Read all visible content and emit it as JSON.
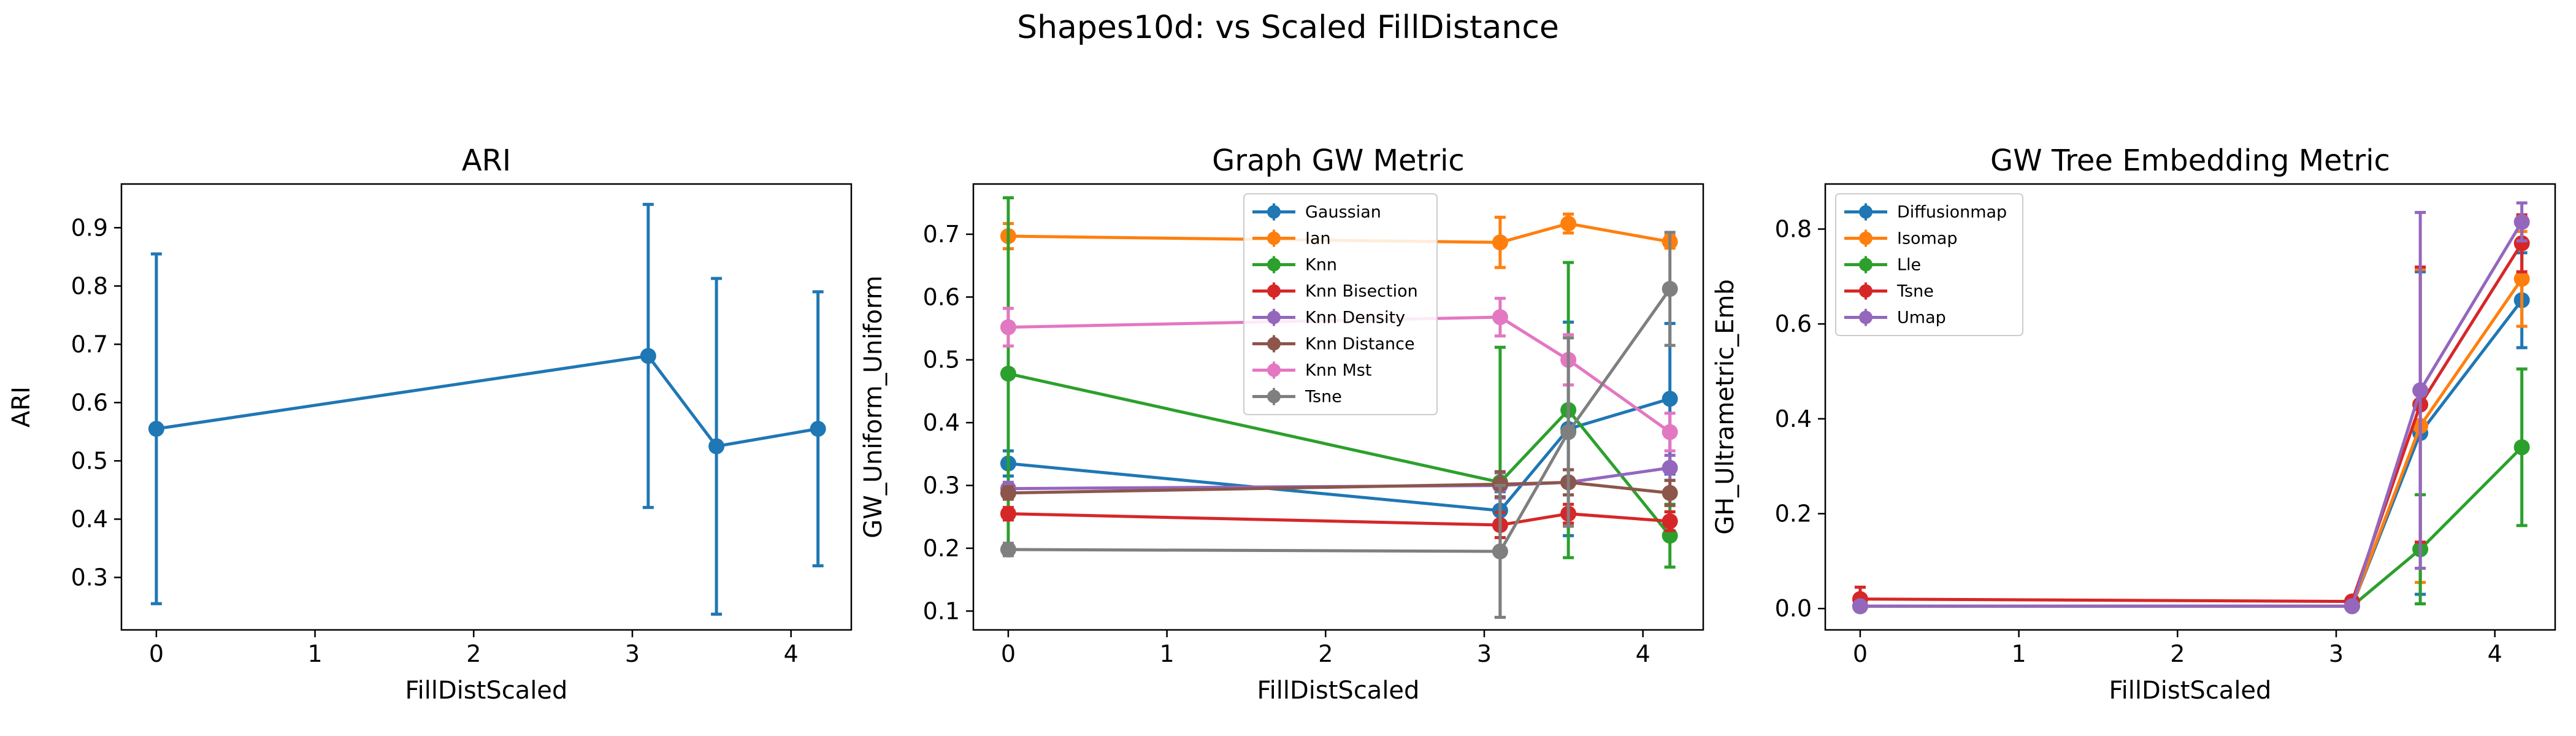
{
  "figure": {
    "title": "Shapes10d: vs Scaled FillDistance"
  },
  "chart_data": [
    {
      "type": "line",
      "title": "ARI",
      "xlabel": "FillDistScaled",
      "ylabel": "ARI",
      "xlim": [
        -0.22,
        4.38
      ],
      "ylim": [
        0.21,
        0.975
      ],
      "xticks": [
        "0",
        "1",
        "2",
        "3",
        "4"
      ],
      "yticks": [
        "0.3",
        "0.4",
        "0.5",
        "0.6",
        "0.7",
        "0.8",
        "0.9"
      ],
      "x": [
        0,
        3.1,
        3.53,
        4.17
      ],
      "legend": "none",
      "series": [
        {
          "color": "#1f77b4",
          "values": [
            0.555,
            0.68,
            0.525,
            0.555
          ],
          "err": [
            0.3,
            0.26,
            0.288,
            0.235
          ]
        }
      ]
    },
    {
      "type": "line",
      "title": "Graph GW Metric",
      "xlabel": "FillDistScaled",
      "ylabel": "GW_Uniform_Uniform",
      "xlim": [
        -0.22,
        4.38
      ],
      "ylim": [
        0.07,
        0.78
      ],
      "xticks": [
        "0",
        "1",
        "2",
        "3",
        "4"
      ],
      "yticks": [
        "0.1",
        "0.2",
        "0.3",
        "0.4",
        "0.5",
        "0.6",
        "0.7"
      ],
      "x": [
        0,
        3.1,
        3.53,
        4.17
      ],
      "legend": "upper-center",
      "series": [
        {
          "name": "Gaussian",
          "color": "#1f77b4",
          "values": [
            0.335,
            0.26,
            0.39,
            0.438
          ],
          "err": [
            0.02,
            0.03,
            0.17,
            0.12
          ]
        },
        {
          "name": "Ian",
          "color": "#ff7f0e",
          "values": [
            0.697,
            0.687,
            0.717,
            0.688
          ],
          "err": [
            0.02,
            0.04,
            0.015,
            0.01
          ]
        },
        {
          "name": "Knn",
          "color": "#2ca02c",
          "values": [
            0.478,
            0.305,
            0.42,
            0.22
          ],
          "err": [
            0.28,
            0.215,
            0.235,
            0.05
          ]
        },
        {
          "name": "Knn Bisection",
          "color": "#d62728",
          "values": [
            0.255,
            0.237,
            0.255,
            0.243
          ],
          "err": [
            0.01,
            0.02,
            0.015,
            0.015
          ]
        },
        {
          "name": "Knn Density",
          "color": "#9467bd",
          "values": [
            0.295,
            0.3,
            0.305,
            0.328
          ],
          "err": [
            0.01,
            0.02,
            0.02,
            0.02
          ]
        },
        {
          "name": "Knn Distance",
          "color": "#8c564b",
          "values": [
            0.288,
            0.302,
            0.305,
            0.288
          ],
          "err": [
            0.01,
            0.02,
            0.02,
            0.02
          ]
        },
        {
          "name": "Knn Mst",
          "color": "#e377c2",
          "values": [
            0.552,
            0.568,
            0.5,
            0.385
          ],
          "err": [
            0.03,
            0.03,
            0.04,
            0.03
          ]
        },
        {
          "name": "Tsne",
          "color": "#7f7f7f",
          "values": [
            0.198,
            0.195,
            0.385,
            0.613
          ],
          "err": [
            0.01,
            0.105,
            0.15,
            0.09
          ]
        }
      ]
    },
    {
      "type": "line",
      "title": "GW Tree Embedding Metric",
      "xlabel": "FillDistScaled",
      "ylabel": "GH_Ultrametric_Emb",
      "xlim": [
        -0.22,
        4.38
      ],
      "ylim": [
        -0.045,
        0.895
      ],
      "xticks": [
        "0",
        "1",
        "2",
        "3",
        "4"
      ],
      "yticks": [
        "0.0",
        "0.2",
        "0.4",
        "0.6",
        "0.8"
      ],
      "x": [
        0,
        3.1,
        3.53,
        4.17
      ],
      "legend": "upper-left",
      "series": [
        {
          "name": "Diffusionmap",
          "color": "#1f77b4",
          "values": [
            0.005,
            0.005,
            0.37,
            0.65
          ],
          "err": [
            0.005,
            0.005,
            0.34,
            0.1
          ]
        },
        {
          "name": "Isomap",
          "color": "#ff7f0e",
          "values": [
            0.005,
            0.005,
            0.385,
            0.695
          ],
          "err": [
            0.005,
            0.005,
            0.33,
            0.1
          ]
        },
        {
          "name": "Lle",
          "color": "#2ca02c",
          "values": [
            0.005,
            0.005,
            0.125,
            0.34
          ],
          "err": [
            0.005,
            0.005,
            0.115,
            0.165
          ]
        },
        {
          "name": "Tsne",
          "color": "#d62728",
          "values": [
            0.02,
            0.015,
            0.43,
            0.77
          ],
          "err": [
            0.025,
            0.005,
            0.29,
            0.06
          ]
        },
        {
          "name": "Umap",
          "color": "#9467bd",
          "values": [
            0.005,
            0.005,
            0.46,
            0.815
          ],
          "err": [
            0.005,
            0.005,
            0.375,
            0.04
          ]
        }
      ]
    }
  ]
}
